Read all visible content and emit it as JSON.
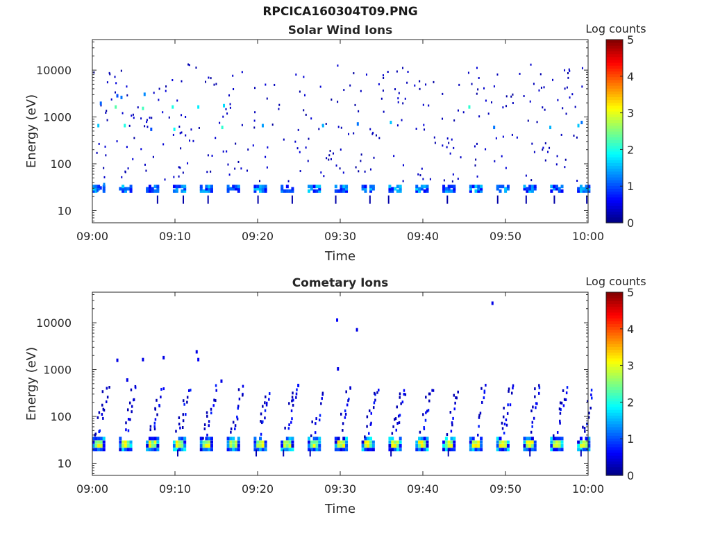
{
  "figure": {
    "title": "RPCICA160304T09.PNG"
  },
  "chart_data": [
    {
      "type": "heatmap",
      "title": "Solar Wind Ions",
      "xlabel": "Time",
      "ylabel": "Energy (eV)",
      "xlim": [
        "09:00",
        "10:00"
      ],
      "x_ticks": [
        "09:00",
        "09:10",
        "09:20",
        "09:30",
        "09:40",
        "09:50",
        "10:00"
      ],
      "y_scale": "log",
      "ylim": [
        5.5,
        45000
      ],
      "y_ticks": [
        10,
        100,
        1000,
        10000
      ],
      "y_tick_labels": [
        "10",
        "100",
        "1000",
        "10000"
      ],
      "colorbar": {
        "label": "Log counts",
        "range": [
          0,
          5
        ],
        "ticks": [
          "0",
          "1",
          "2",
          "3",
          "4",
          "5"
        ],
        "colormap": "jet"
      },
      "sweep_count": 19,
      "cells": [
        {
          "t": 0.3,
          "e": 30,
          "v": 1.2
        },
        {
          "t": 0.5,
          "e": 25,
          "v": 1.0
        },
        {
          "t": 0.9,
          "e": 28,
          "v": 0.8
        },
        {
          "t": 1.3,
          "e": 33,
          "v": 1.3
        },
        {
          "t": 0.6,
          "e": 600,
          "v": 1.6
        },
        {
          "t": 0.9,
          "e": 1800,
          "v": 1.1
        },
        {
          "t": 2.7,
          "e": 1500,
          "v": 2.3
        },
        {
          "t": 2.9,
          "e": 2600,
          "v": 1.0
        },
        {
          "t": 3.4,
          "e": 2400,
          "v": 1.2
        },
        {
          "t": 3.8,
          "e": 600,
          "v": 2.0
        },
        {
          "t": 6.0,
          "e": 1400,
          "v": 2.2
        },
        {
          "t": 6.2,
          "e": 2800,
          "v": 1.3
        },
        {
          "t": 7.0,
          "e": 500,
          "v": 1.0
        },
        {
          "t": 9.6,
          "e": 1500,
          "v": 2.0
        },
        {
          "t": 9.8,
          "e": 500,
          "v": 1.9
        },
        {
          "t": 12.7,
          "e": 1500,
          "v": 1.8
        },
        {
          "t": 15.8,
          "e": 1600,
          "v": 1.7
        },
        {
          "t": 15.6,
          "e": 550,
          "v": 2.1
        },
        {
          "t": 20.5,
          "e": 600,
          "v": 1.4
        },
        {
          "t": 27.8,
          "e": 600,
          "v": 1.5
        },
        {
          "t": 32.0,
          "e": 650,
          "v": 1.2
        },
        {
          "t": 36.0,
          "e": 700,
          "v": 1.6
        },
        {
          "t": 45.5,
          "e": 1500,
          "v": 2.1
        },
        {
          "t": 48.5,
          "e": 550,
          "v": 1.2
        },
        {
          "t": 55.3,
          "e": 550,
          "v": 1.5
        },
        {
          "t": 58.7,
          "e": 600,
          "v": 1.6
        },
        {
          "t": 59.1,
          "e": 700,
          "v": 1.2
        }
      ]
    },
    {
      "type": "heatmap",
      "title": "Cometary Ions",
      "xlabel": "Time",
      "ylabel": "Energy (eV)",
      "xlim": [
        "09:00",
        "10:00"
      ],
      "x_ticks": [
        "09:00",
        "09:10",
        "09:20",
        "09:30",
        "09:40",
        "09:50",
        "10:00"
      ],
      "y_scale": "log",
      "ylim": [
        5.5,
        45000
      ],
      "y_ticks": [
        10,
        100,
        1000,
        10000
      ],
      "y_tick_labels": [
        "10",
        "100",
        "1000",
        "10000"
      ],
      "colorbar": {
        "label": "Log counts",
        "range": [
          0,
          5
        ],
        "ticks": [
          "0",
          "1",
          "2",
          "3",
          "4",
          "5"
        ],
        "colormap": "jet"
      },
      "sweep_count": 19,
      "cells": [
        {
          "t": 2.9,
          "e": 1450,
          "v": 0.5
        },
        {
          "t": 4.1,
          "e": 550,
          "v": 0.5
        },
        {
          "t": 6.0,
          "e": 1500,
          "v": 0.5
        },
        {
          "t": 8.5,
          "e": 1650,
          "v": 0.5
        },
        {
          "t": 12.5,
          "e": 2200,
          "v": 0.5
        },
        {
          "t": 12.7,
          "e": 1500,
          "v": 0.6
        },
        {
          "t": 15.5,
          "e": 520,
          "v": 0.5
        },
        {
          "t": 29.5,
          "e": 10500,
          "v": 0.6
        },
        {
          "t": 31.9,
          "e": 6500,
          "v": 0.5
        },
        {
          "t": 29.6,
          "e": 950,
          "v": 0.5
        },
        {
          "t": 48.3,
          "e": 24000,
          "v": 0.5
        },
        {
          "t": 24.8,
          "e": 420,
          "v": 0.7
        }
      ]
    }
  ]
}
